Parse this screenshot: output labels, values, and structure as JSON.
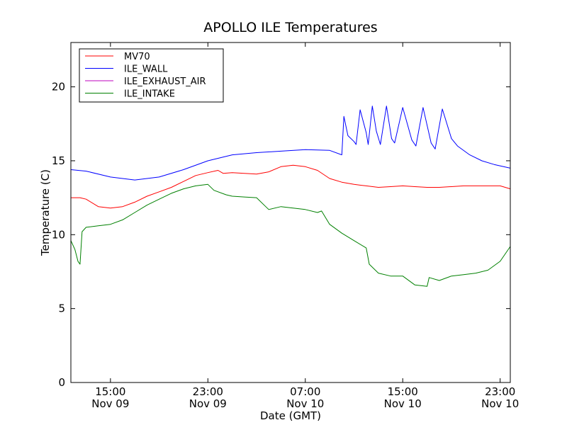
{
  "chart_data": {
    "type": "line",
    "title": "APOLLO ILE Temperatures",
    "xlabel": "Date (GMT)",
    "ylabel": "Temperature (C)",
    "xlim": [
      "2009-11-09 11:45",
      "2009-11-10 23:50"
    ],
    "ylim": [
      0,
      23
    ],
    "grid": false,
    "legend_position": "top-left",
    "y_ticks": [
      0,
      5,
      10,
      15,
      20
    ],
    "x_ticks": [
      {
        "t": "2009-11-09 15:00",
        "time": "15:00",
        "date": "Nov 09"
      },
      {
        "t": "2009-11-09 23:00",
        "time": "23:00",
        "date": "Nov 09"
      },
      {
        "t": "2009-11-10 07:00",
        "time": "07:00",
        "date": "Nov 10"
      },
      {
        "t": "2009-11-10 15:00",
        "time": "15:00",
        "date": "Nov 10"
      },
      {
        "t": "2009-11-10 23:00",
        "time": "23:00",
        "date": "Nov 10"
      }
    ],
    "series": [
      {
        "name": "MV70",
        "color": "#ff0000",
        "x": [
          "2009-11-09 11:45",
          "2009-11-09 12:30",
          "2009-11-09 13:00",
          "2009-11-09 14:00",
          "2009-11-09 15:00",
          "2009-11-09 16:00",
          "2009-11-09 17:00",
          "2009-11-09 18:00",
          "2009-11-09 19:00",
          "2009-11-09 20:00",
          "2009-11-09 21:00",
          "2009-11-09 22:00",
          "2009-11-09 23:00",
          "2009-11-09 23:50",
          "2009-11-10 00:15",
          "2009-11-10 01:00",
          "2009-11-10 02:00",
          "2009-11-10 03:00",
          "2009-11-10 04:00",
          "2009-11-10 05:00",
          "2009-11-10 06:00",
          "2009-11-10 07:00",
          "2009-11-10 08:00",
          "2009-11-10 09:00",
          "2009-11-10 10:00",
          "2009-11-10 11:00",
          "2009-11-10 12:00",
          "2009-11-10 13:00",
          "2009-11-10 14:00",
          "2009-11-10 15:00",
          "2009-11-10 16:00",
          "2009-11-10 17:00",
          "2009-11-10 18:00",
          "2009-11-10 19:00",
          "2009-11-10 20:00",
          "2009-11-10 21:00",
          "2009-11-10 22:00",
          "2009-11-10 23:00",
          "2009-11-10 23:50"
        ],
        "values": [
          12.5,
          12.5,
          12.4,
          11.9,
          11.8,
          11.9,
          12.2,
          12.6,
          12.9,
          13.2,
          13.6,
          14.0,
          14.2,
          14.35,
          14.15,
          14.2,
          14.15,
          14.1,
          14.25,
          14.6,
          14.7,
          14.6,
          14.35,
          13.8,
          13.55,
          13.4,
          13.3,
          13.2,
          13.25,
          13.3,
          13.25,
          13.2,
          13.2,
          13.25,
          13.3,
          13.3,
          13.3,
          13.3,
          13.1
        ]
      },
      {
        "name": "ILE_WALL",
        "color": "#0000ff",
        "x": [
          "2009-11-09 11:45",
          "2009-11-09 13:00",
          "2009-11-09 15:00",
          "2009-11-09 17:00",
          "2009-11-09 19:00",
          "2009-11-09 21:00",
          "2009-11-09 23:00",
          "2009-11-10 01:00",
          "2009-11-10 03:00",
          "2009-11-10 05:00",
          "2009-11-10 07:00",
          "2009-11-10 09:00",
          "2009-11-10 10:00",
          "2009-11-10 10:10",
          "2009-11-10 10:30",
          "2009-11-10 11:00",
          "2009-11-10 11:10",
          "2009-11-10 11:30",
          "2009-11-10 12:00",
          "2009-11-10 12:10",
          "2009-11-10 12:30",
          "2009-11-10 12:50",
          "2009-11-10 13:10",
          "2009-11-10 13:40",
          "2009-11-10 14:05",
          "2009-11-10 14:20",
          "2009-11-10 15:00",
          "2009-11-10 15:45",
          "2009-11-10 16:05",
          "2009-11-10 16:40",
          "2009-11-10 17:20",
          "2009-11-10 17:40",
          "2009-11-10 18:15",
          "2009-11-10 19:00",
          "2009-11-10 19:30",
          "2009-11-10 20:30",
          "2009-11-10 21:30",
          "2009-11-10 22:30",
          "2009-11-10 23:50"
        ],
        "values": [
          14.4,
          14.3,
          13.9,
          13.7,
          13.9,
          14.4,
          15.0,
          15.4,
          15.55,
          15.65,
          15.75,
          15.7,
          15.4,
          18.0,
          16.7,
          16.3,
          16.1,
          18.45,
          16.9,
          16.1,
          18.7,
          17.0,
          16.1,
          18.7,
          16.5,
          16.2,
          18.6,
          16.4,
          16.0,
          18.6,
          16.2,
          15.8,
          18.5,
          16.5,
          16.0,
          15.4,
          15.0,
          14.75,
          14.5
        ]
      },
      {
        "name": "ILE_EXHAUST_AIR",
        "color": "#bf00bf",
        "x": [],
        "values": []
      },
      {
        "name": "ILE_INTAKE",
        "color": "#008000",
        "x": [
          "2009-11-09 11:45",
          "2009-11-09 12:05",
          "2009-11-09 12:20",
          "2009-11-09 12:30",
          "2009-11-09 12:40",
          "2009-11-09 13:00",
          "2009-11-09 14:00",
          "2009-11-09 15:00",
          "2009-11-09 16:00",
          "2009-11-09 17:00",
          "2009-11-09 18:00",
          "2009-11-09 19:00",
          "2009-11-09 20:00",
          "2009-11-09 21:00",
          "2009-11-09 22:00",
          "2009-11-09 23:00",
          "2009-11-09 23:30",
          "2009-11-10 00:30",
          "2009-11-10 01:00",
          "2009-11-10 02:00",
          "2009-11-10 03:00",
          "2009-11-10 03:45",
          "2009-11-10 04:00",
          "2009-11-10 05:00",
          "2009-11-10 06:00",
          "2009-11-10 07:00",
          "2009-11-10 08:00",
          "2009-11-10 08:20",
          "2009-11-10 09:00",
          "2009-11-10 10:00",
          "2009-11-10 11:00",
          "2009-11-10 12:00",
          "2009-11-10 12:15",
          "2009-11-10 13:00",
          "2009-11-10 14:00",
          "2009-11-10 15:00",
          "2009-11-10 16:00",
          "2009-11-10 17:00",
          "2009-11-10 17:10",
          "2009-11-10 18:00",
          "2009-11-10 19:00",
          "2009-11-10 20:00",
          "2009-11-10 21:00",
          "2009-11-10 22:00",
          "2009-11-10 23:00",
          "2009-11-10 23:50"
        ],
        "values": [
          9.6,
          9.0,
          8.2,
          8.0,
          10.2,
          10.5,
          10.6,
          10.7,
          11.0,
          11.5,
          12.0,
          12.4,
          12.8,
          13.1,
          13.3,
          13.4,
          13.0,
          12.7,
          12.6,
          12.55,
          12.5,
          11.9,
          11.7,
          11.9,
          11.8,
          11.7,
          11.5,
          11.6,
          10.7,
          10.1,
          9.6,
          9.1,
          8.0,
          7.4,
          7.2,
          7.2,
          6.6,
          6.5,
          7.1,
          6.9,
          7.2,
          7.3,
          7.4,
          7.6,
          8.2,
          9.2
        ]
      }
    ]
  }
}
